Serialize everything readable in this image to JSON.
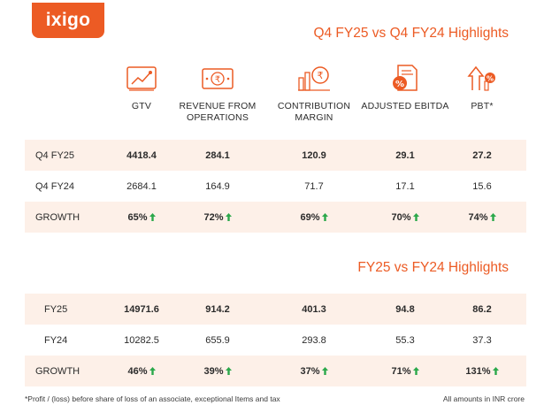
{
  "brand": {
    "logo_text": "ixigo",
    "accent": "#ec5b24",
    "row_shade": "#fdf0e8",
    "growth_arrow": "#2aa84a"
  },
  "section1": {
    "title": "Q4 FY25 vs Q4 FY24 Highlights",
    "rows": [
      {
        "label": "Q4 FY25",
        "values": [
          "4418.4",
          "284.1",
          "120.9",
          "29.1",
          "27.2"
        ]
      },
      {
        "label": "Q4 FY24",
        "values": [
          "2684.1",
          "164.9",
          "71.7",
          "17.1",
          "15.6"
        ]
      },
      {
        "label": "GROWTH",
        "values": [
          "65%",
          "72%",
          "69%",
          "70%",
          "74%"
        ]
      }
    ]
  },
  "columns": [
    {
      "label": "GTV",
      "icon": "chart-screen-icon"
    },
    {
      "label": "REVENUE FROM OPERATIONS",
      "icon": "rupee-note-icon"
    },
    {
      "label": "CONTRIBUTION MARGIN",
      "icon": "rupee-coins-icon"
    },
    {
      "label": "ADJUSTED EBITDA",
      "icon": "percent-document-icon"
    },
    {
      "label": "PBT*",
      "icon": "growth-percent-icon"
    }
  ],
  "section2": {
    "title": "FY25 vs FY24 Highlights",
    "rows": [
      {
        "label": "FY25",
        "values": [
          "14971.6",
          "914.2",
          "401.3",
          "94.8",
          "86.2"
        ]
      },
      {
        "label": "FY24",
        "values": [
          "10282.5",
          "655.9",
          "293.8",
          "55.3",
          "37.3"
        ]
      },
      {
        "label": "GROWTH",
        "values": [
          "46%",
          "39%",
          "37%",
          "71%",
          "131%"
        ]
      }
    ]
  },
  "footnote": "*Profit / (loss) before share of loss of an associate, exceptional Items and tax",
  "amounts_note": "All amounts in INR crore"
}
